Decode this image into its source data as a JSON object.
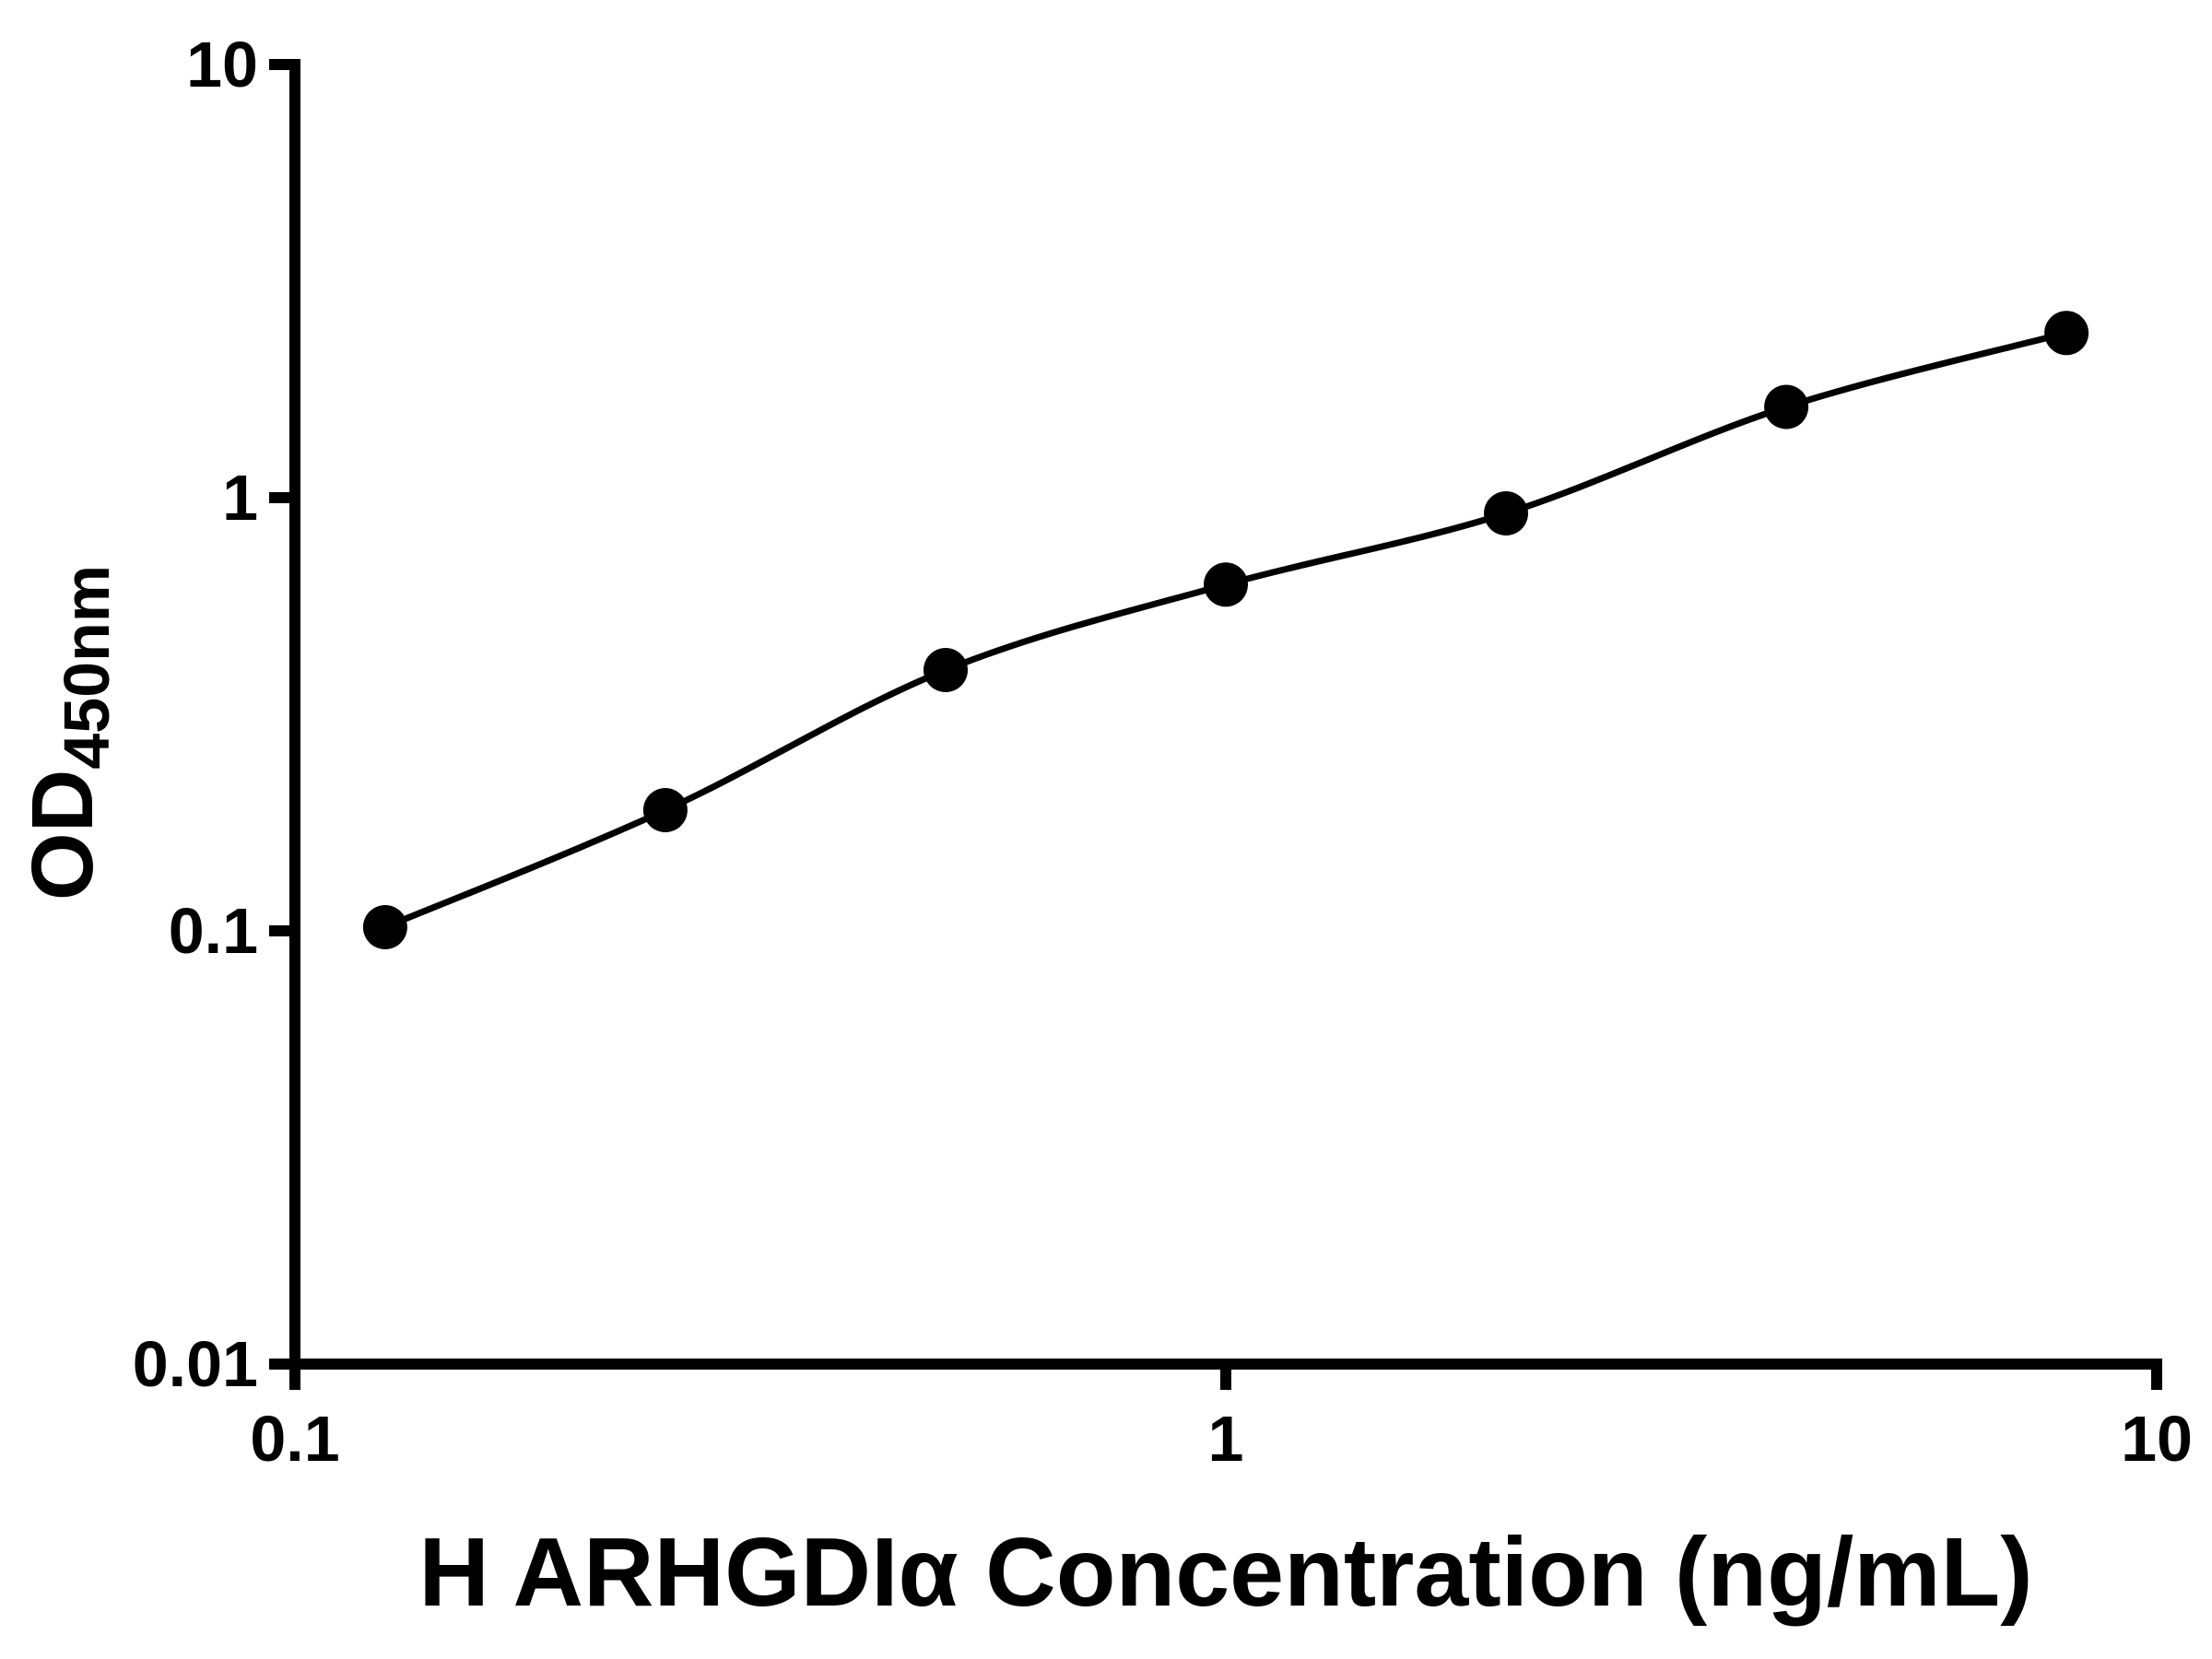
{
  "figure": {
    "background_color": "#ffffff"
  },
  "chart_data": {
    "type": "scatter",
    "xlabel": "H ARHGDIα Concentration (ng/mL)",
    "ylabel_base": "OD",
    "ylabel_sub": "450nm",
    "xscale": "log",
    "yscale": "log",
    "xlim": [
      0.1,
      10
    ],
    "ylim": [
      0.01,
      10
    ],
    "x": [
      0.125,
      0.25,
      0.5,
      1,
      2,
      4,
      8
    ],
    "y": [
      0.102,
      0.19,
      0.4,
      0.63,
      0.92,
      1.62,
      2.4
    ],
    "x_ticks": [
      {
        "value": 0.1,
        "label": "0.1"
      },
      {
        "value": 1,
        "label": "1"
      },
      {
        "value": 10,
        "label": "10"
      }
    ],
    "y_ticks": [
      {
        "value": 0.01,
        "label": "0.01"
      },
      {
        "value": 0.1,
        "label": "0.1"
      },
      {
        "value": 1,
        "label": "1"
      },
      {
        "value": 10,
        "label": "10"
      }
    ],
    "grid": false,
    "legend": "none",
    "axis_color": "#000000",
    "line_color": "#000000",
    "marker_color": "#000000"
  }
}
